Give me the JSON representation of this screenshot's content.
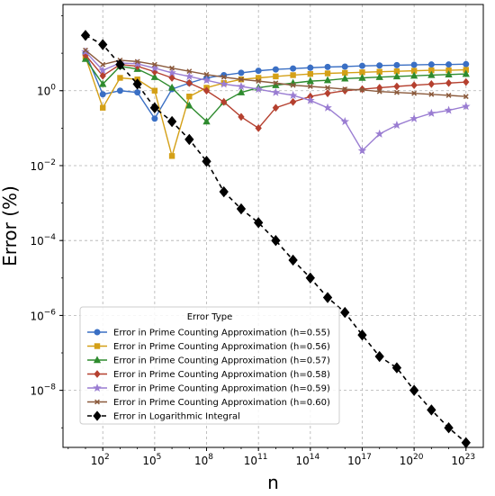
{
  "chart_data": {
    "type": "line",
    "xlabel": "n",
    "ylabel": "Error (%)",
    "xscale": "log",
    "yscale": "log",
    "xlim": [
      0.5,
      1e+24
    ],
    "ylim": [
      3e-10,
      200
    ],
    "grid": true,
    "grid_style": "dashed",
    "x_ticks": [
      {
        "value": 100.0,
        "base": "10",
        "exp": "2"
      },
      {
        "value": 100000.0,
        "base": "10",
        "exp": "5"
      },
      {
        "value": 100000000.0,
        "base": "10",
        "exp": "8"
      },
      {
        "value": 100000000000.0,
        "base": "10",
        "exp": "11"
      },
      {
        "value": 100000000000000.0,
        "base": "10",
        "exp": "14"
      },
      {
        "value": 1e+17,
        "base": "10",
        "exp": "17"
      },
      {
        "value": 1e+20,
        "base": "10",
        "exp": "20"
      },
      {
        "value": 1e+23,
        "base": "10",
        "exp": "23"
      }
    ],
    "y_ticks": [
      {
        "value": 1e-08,
        "base": "10",
        "exp": "−8"
      },
      {
        "value": 1e-06,
        "base": "10",
        "exp": "−6"
      },
      {
        "value": 0.0001,
        "base": "10",
        "exp": "−4"
      },
      {
        "value": 0.01,
        "base": "10",
        "exp": "−2"
      },
      {
        "value": 1,
        "base": "10",
        "exp": "0"
      }
    ],
    "legend": {
      "title": "Error Type",
      "placement": "lower-left"
    },
    "x": [
      10,
      100,
      1000,
      10000,
      100000,
      1000000,
      10000000,
      100000000,
      1000000000,
      10000000000,
      100000000000,
      1000000000000,
      10000000000000,
      100000000000000,
      1000000000000000,
      10000000000000000,
      100000000000000000,
      1000000000000000000,
      10000000000000000000,
      100000000000000000000,
      1e+21,
      1e+22,
      1e+23
    ],
    "series": [
      {
        "name": "Error in Prime Counting Approximation (h=0.55)",
        "color": "#3a6fc4",
        "marker": "circle",
        "dashed": false,
        "values": [
          10,
          0.8,
          1.0,
          0.9,
          0.18,
          1.1,
          1.6,
          2.2,
          2.6,
          3.0,
          3.4,
          3.7,
          3.9,
          4.1,
          4.3,
          4.4,
          4.6,
          4.7,
          4.8,
          4.9,
          5.0,
          5.0,
          5.1
        ]
      },
      {
        "name": "Error in Prime Counting Approximation (h=0.56)",
        "color": "#d4a017",
        "marker": "square",
        "dashed": false,
        "values": [
          8,
          0.35,
          2.2,
          2.0,
          1.0,
          0.018,
          0.7,
          1.2,
          1.6,
          2.0,
          2.2,
          2.4,
          2.6,
          2.8,
          2.9,
          3.0,
          3.1,
          3.2,
          3.3,
          3.4,
          3.5,
          3.5,
          3.6
        ]
      },
      {
        "name": "Error in Prime Counting Approximation (h=0.57)",
        "color": "#2e8b2e",
        "marker": "triangle",
        "dashed": false,
        "values": [
          7,
          1.5,
          4.5,
          3.8,
          2.3,
          1.2,
          0.4,
          0.15,
          0.5,
          0.9,
          1.2,
          1.4,
          1.6,
          1.8,
          1.9,
          2.1,
          2.2,
          2.3,
          2.4,
          2.5,
          2.6,
          2.7,
          2.8
        ]
      },
      {
        "name": "Error in Prime Counting Approximation (h=0.58)",
        "color": "#b5402f",
        "marker": "diamond",
        "dashed": false,
        "values": [
          9,
          2.5,
          5.0,
          4.5,
          3.2,
          2.2,
          1.6,
          1.0,
          0.5,
          0.2,
          0.1,
          0.35,
          0.5,
          0.7,
          0.85,
          1.0,
          1.1,
          1.2,
          1.3,
          1.4,
          1.5,
          1.6,
          1.7
        ]
      },
      {
        "name": "Error in Prime Counting Approximation (h=0.59)",
        "color": "#9a7dd2",
        "marker": "star",
        "dashed": false,
        "values": [
          11,
          3.5,
          5.5,
          5.2,
          4.0,
          3.0,
          2.4,
          1.9,
          1.5,
          1.3,
          1.1,
          0.9,
          0.75,
          0.55,
          0.35,
          0.15,
          0.025,
          0.07,
          0.12,
          0.18,
          0.25,
          0.3,
          0.38
        ]
      },
      {
        "name": "Error in Prime Counting Approximation (h=0.60)",
        "color": "#8b5a3c",
        "marker": "x",
        "dashed": false,
        "values": [
          12,
          5.0,
          6.5,
          6.0,
          5.0,
          4.0,
          3.3,
          2.7,
          2.3,
          2.0,
          1.8,
          1.6,
          1.4,
          1.3,
          1.2,
          1.1,
          1.05,
          0.95,
          0.9,
          0.85,
          0.8,
          0.75,
          0.7
        ]
      },
      {
        "name": "Error in Logarithmic Integral",
        "color": "#000000",
        "marker": "diamond",
        "dashed": true,
        "values": [
          30,
          17,
          5.0,
          1.5,
          0.35,
          0.15,
          0.05,
          0.013,
          0.002,
          0.0007,
          0.0003,
          0.0001,
          3e-05,
          1e-05,
          3e-06,
          1.2e-06,
          3e-07,
          8e-08,
          4e-08,
          1e-08,
          3e-09,
          1e-09,
          4e-10
        ]
      }
    ]
  }
}
